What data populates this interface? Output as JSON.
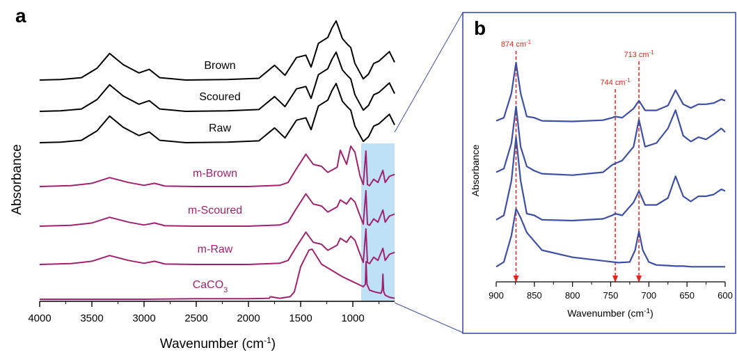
{
  "chart_data": [
    {
      "panel": "a",
      "type": "line",
      "xlabel": "Wavenumber (cm",
      "xlabel_sup": "-1",
      "xlabel_end": ")",
      "ylabel": "Absorbance",
      "xlim": [
        4000,
        600
      ],
      "xticks": [
        "4000",
        "3500",
        "3000",
        "2500",
        "2000",
        "1500",
        "1000"
      ],
      "highlight_range": [
        920,
        600
      ],
      "grid": false,
      "series": [
        {
          "name": "Brown",
          "color": "#000000",
          "x": [
            4000,
            3800,
            3600,
            3450,
            3330,
            3200,
            3050,
            2950,
            2850,
            2600,
            2200,
            1900,
            1750,
            1650,
            1540,
            1450,
            1400,
            1330,
            1240,
            1200,
            1160,
            1100,
            1050,
            1020,
            980,
            900,
            850,
            800,
            750,
            700,
            650,
            600
          ],
          "y": [
            0.0,
            0.01,
            0.04,
            0.2,
            0.45,
            0.26,
            0.12,
            0.18,
            0.04,
            0.0,
            0.01,
            0.03,
            0.25,
            0.08,
            0.38,
            0.42,
            0.22,
            0.62,
            0.72,
            0.88,
            1.0,
            0.7,
            0.6,
            0.55,
            0.28,
            0.02,
            0.1,
            0.28,
            0.32,
            0.4,
            0.48,
            0.3
          ]
        },
        {
          "name": "Scoured",
          "color": "#000000",
          "x": [
            4000,
            3800,
            3600,
            3450,
            3330,
            3200,
            3050,
            2950,
            2850,
            2600,
            2200,
            1900,
            1750,
            1650,
            1540,
            1450,
            1400,
            1330,
            1240,
            1200,
            1160,
            1100,
            1050,
            1020,
            980,
            900,
            850,
            800,
            750,
            700,
            650,
            600
          ],
          "y": [
            0.0,
            0.01,
            0.04,
            0.2,
            0.45,
            0.26,
            0.12,
            0.18,
            0.04,
            0.0,
            0.01,
            0.03,
            0.25,
            0.08,
            0.38,
            0.42,
            0.22,
            0.62,
            0.72,
            0.88,
            1.0,
            0.7,
            0.6,
            0.55,
            0.28,
            0.02,
            0.1,
            0.28,
            0.32,
            0.4,
            0.48,
            0.3
          ]
        },
        {
          "name": "Raw",
          "color": "#000000",
          "x": [
            4000,
            3800,
            3600,
            3450,
            3330,
            3200,
            3050,
            2950,
            2850,
            2600,
            2200,
            1900,
            1750,
            1650,
            1540,
            1450,
            1400,
            1330,
            1240,
            1200,
            1160,
            1100,
            1050,
            1020,
            980,
            900,
            850,
            800,
            750,
            700,
            650,
            600
          ],
          "y": [
            0.0,
            0.01,
            0.04,
            0.2,
            0.45,
            0.26,
            0.12,
            0.18,
            0.04,
            0.0,
            0.01,
            0.03,
            0.25,
            0.08,
            0.38,
            0.42,
            0.22,
            0.62,
            0.72,
            0.88,
            1.0,
            0.7,
            0.6,
            0.55,
            0.28,
            0.02,
            0.1,
            0.28,
            0.32,
            0.4,
            0.48,
            0.3
          ]
        },
        {
          "name": "m-Brown",
          "color": "#a0226e",
          "x": [
            4000,
            3700,
            3500,
            3330,
            3150,
            3000,
            2900,
            2800,
            2500,
            2000,
            1700,
            1620,
            1550,
            1450,
            1380,
            1300,
            1240,
            1150,
            1120,
            1060,
            1020,
            980,
            930,
            900,
            875,
            860,
            840,
            800,
            760,
            712,
            690,
            650,
            600
          ],
          "y": [
            0.0,
            0.02,
            0.08,
            0.22,
            0.1,
            0.03,
            0.08,
            0.01,
            0.0,
            0.0,
            0.03,
            0.1,
            0.4,
            0.8,
            0.55,
            0.5,
            0.35,
            0.48,
            0.9,
            0.55,
            1.0,
            0.85,
            0.25,
            0.05,
            0.88,
            0.05,
            0.02,
            0.18,
            0.1,
            0.4,
            0.1,
            0.25,
            0.3
          ]
        },
        {
          "name": "m-Scoured",
          "color": "#a0226e",
          "x": [
            4000,
            3700,
            3500,
            3330,
            3150,
            3000,
            2900,
            2800,
            2500,
            2000,
            1700,
            1620,
            1550,
            1450,
            1380,
            1300,
            1240,
            1150,
            1120,
            1060,
            1020,
            980,
            930,
            900,
            875,
            860,
            840,
            800,
            760,
            712,
            690,
            650,
            600
          ],
          "y": [
            0.0,
            0.02,
            0.08,
            0.22,
            0.1,
            0.03,
            0.08,
            0.01,
            0.0,
            0.0,
            0.03,
            0.1,
            0.4,
            0.8,
            0.55,
            0.5,
            0.35,
            0.48,
            0.65,
            0.55,
            0.7,
            0.6,
            0.25,
            0.05,
            0.88,
            0.05,
            0.02,
            0.18,
            0.1,
            0.4,
            0.1,
            0.25,
            0.3
          ]
        },
        {
          "name": "m-Raw",
          "color": "#a0226e",
          "x": [
            4000,
            3700,
            3500,
            3330,
            3150,
            3000,
            2900,
            2800,
            2500,
            2000,
            1700,
            1620,
            1550,
            1450,
            1380,
            1300,
            1240,
            1150,
            1120,
            1060,
            1020,
            980,
            930,
            900,
            875,
            860,
            840,
            800,
            760,
            712,
            690,
            650,
            600
          ],
          "y": [
            0.0,
            0.02,
            0.08,
            0.22,
            0.1,
            0.03,
            0.08,
            0.01,
            0.0,
            0.0,
            0.03,
            0.1,
            0.4,
            0.8,
            0.55,
            0.5,
            0.35,
            0.48,
            0.65,
            0.55,
            0.7,
            0.6,
            0.25,
            0.05,
            0.88,
            0.05,
            0.02,
            0.18,
            0.1,
            0.4,
            0.1,
            0.25,
            0.3
          ]
        },
        {
          "name": "CaCO",
          "name_sub": "3",
          "color": "#a0226e",
          "x": [
            4000,
            3000,
            2500,
            2000,
            1800,
            1790,
            1700,
            1600,
            1560,
            1500,
            1420,
            1390,
            1300,
            1100,
            1000,
            900,
            880,
            873,
            865,
            840,
            780,
            730,
            718,
            712,
            705,
            690,
            650,
            600
          ],
          "y": [
            0.0,
            0.0,
            0.01,
            0.01,
            0.02,
            0.05,
            0.02,
            0.05,
            0.15,
            0.65,
            0.98,
            1.0,
            0.7,
            0.45,
            0.35,
            0.25,
            0.3,
            0.75,
            0.3,
            0.18,
            0.14,
            0.12,
            0.2,
            0.5,
            0.15,
            0.08,
            0.04,
            0.02
          ]
        }
      ]
    },
    {
      "panel": "b",
      "type": "line",
      "xlabel": "Wavenumber (cm",
      "xlabel_sup": "-1",
      "xlabel_end": ")",
      "ylabel": "Absorbance",
      "xlim": [
        900,
        600
      ],
      "xticks": [
        "900",
        "850",
        "800",
        "750",
        "700",
        "650",
        "600"
      ],
      "grid": false,
      "annotations": [
        {
          "x": 874,
          "label": "874 cm",
          "sup": "-1"
        },
        {
          "x": 744,
          "label": "744 cm",
          "sup": "-1"
        },
        {
          "x": 713,
          "label": "713 cm",
          "sup": "-1"
        }
      ],
      "series": [
        {
          "color": "#3d4fa3",
          "x": [
            900,
            890,
            880,
            874,
            868,
            860,
            850,
            840,
            800,
            760,
            748,
            744,
            735,
            720,
            713,
            705,
            690,
            675,
            665,
            655,
            645,
            635,
            625,
            615,
            605,
            600
          ],
          "y": [
            0.05,
            0.1,
            0.5,
            1.0,
            0.5,
            0.12,
            0.1,
            0.05,
            0.04,
            0.06,
            0.1,
            0.12,
            0.1,
            0.25,
            0.38,
            0.22,
            0.22,
            0.3,
            0.55,
            0.32,
            0.26,
            0.32,
            0.32,
            0.34,
            0.4,
            0.38
          ]
        },
        {
          "color": "#3d4fa3",
          "x": [
            900,
            890,
            880,
            874,
            868,
            860,
            850,
            840,
            800,
            760,
            748,
            744,
            735,
            720,
            713,
            705,
            690,
            675,
            665,
            655,
            645,
            635,
            625,
            615,
            605,
            600
          ],
          "y": [
            0.1,
            0.15,
            0.5,
            1.0,
            0.45,
            0.18,
            0.12,
            0.08,
            0.06,
            0.1,
            0.2,
            0.22,
            0.26,
            0.45,
            0.82,
            0.45,
            0.5,
            0.7,
            0.95,
            0.6,
            0.52,
            0.58,
            0.55,
            0.62,
            0.7,
            0.65
          ]
        },
        {
          "color": "#3d4fa3",
          "x": [
            900,
            890,
            880,
            874,
            868,
            860,
            850,
            840,
            800,
            760,
            748,
            744,
            735,
            720,
            713,
            705,
            690,
            675,
            665,
            655,
            645,
            635,
            625,
            615,
            605,
            600
          ],
          "y": [
            0.05,
            0.1,
            0.5,
            1.0,
            0.5,
            0.12,
            0.1,
            0.05,
            0.04,
            0.06,
            0.1,
            0.12,
            0.1,
            0.25,
            0.38,
            0.22,
            0.22,
            0.3,
            0.55,
            0.32,
            0.26,
            0.32,
            0.32,
            0.34,
            0.4,
            0.38
          ]
        },
        {
          "color": "#3d4fa3",
          "x": [
            900,
            890,
            880,
            874,
            868,
            860,
            850,
            840,
            800,
            760,
            740,
            725,
            718,
            713,
            708,
            700,
            690,
            675,
            665,
            655,
            645,
            635,
            625,
            615,
            605,
            600
          ],
          "y": [
            0.02,
            0.1,
            0.55,
            1.0,
            0.85,
            0.6,
            0.45,
            0.3,
            0.18,
            0.12,
            0.09,
            0.1,
            0.3,
            0.62,
            0.3,
            0.1,
            0.05,
            0.04,
            0.03,
            0.03,
            0.02,
            0.02,
            0.02,
            0.02,
            0.02,
            0.02
          ]
        }
      ]
    }
  ]
}
